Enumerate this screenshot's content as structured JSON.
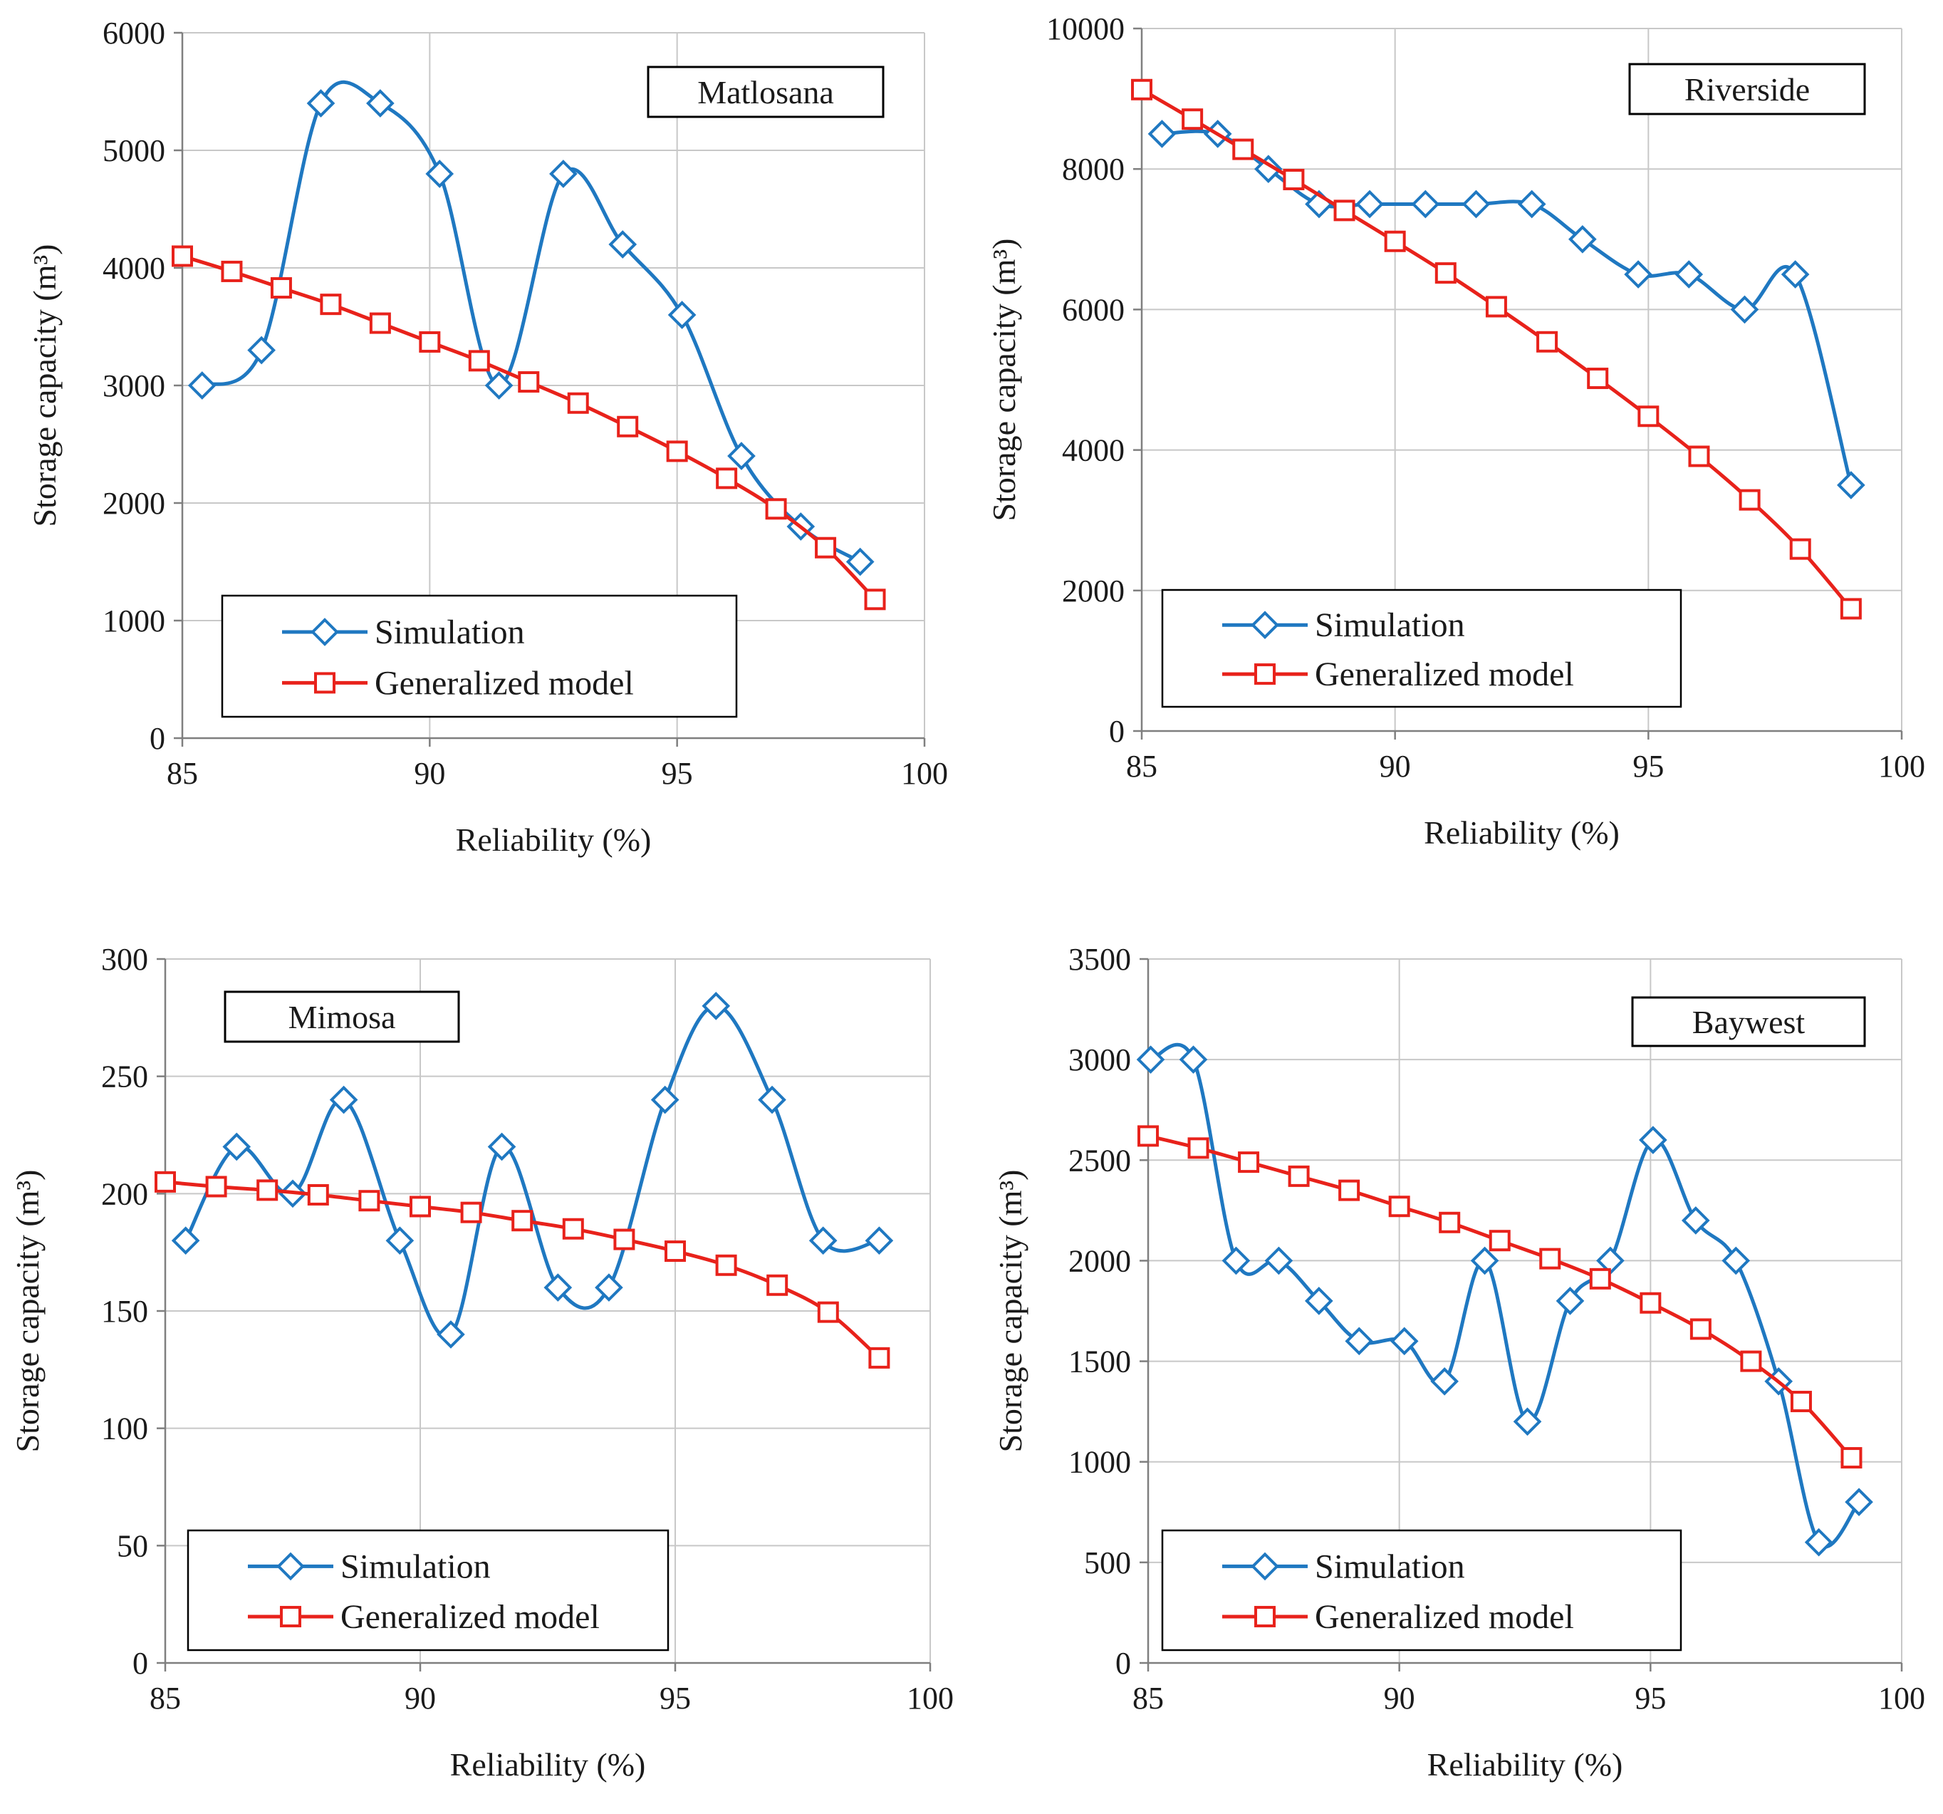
{
  "colors": {
    "simulation": "#1f78c1",
    "generalized_model": "#e8221b",
    "grid": "#c8c8c8",
    "axis": "#7f7f7f",
    "box_border": "#000000"
  },
  "chart_data": [
    {
      "id": "matlosana",
      "type": "line",
      "title": "Matlosana",
      "title_position": "top-right",
      "xlabel": "Reliability (%)",
      "ylabel": "Storage capacity (m³)",
      "xlim": [
        85,
        100
      ],
      "ylim": [
        0,
        6000
      ],
      "xticks": [
        85,
        90,
        95,
        100
      ],
      "yticks": [
        0,
        1000,
        2000,
        3000,
        4000,
        5000,
        6000
      ],
      "xtick_labels": [
        "85",
        "90",
        "95",
        "100"
      ],
      "ytick_labels": [
        "0",
        "1000",
        "2000",
        "3000",
        "4000",
        "5000",
        "6000"
      ],
      "grid": true,
      "legend_position": "bottom-left",
      "series": [
        {
          "name": "Simulation",
          "marker": "diamond",
          "x": [
            85.4,
            86.6,
            87.8,
            89.0,
            90.2,
            91.4,
            92.7,
            93.9,
            95.1,
            96.3,
            97.5,
            98.7
          ],
          "y": [
            3000,
            3300,
            5400,
            5400,
            4800,
            3000,
            4800,
            4200,
            3600,
            2400,
            1800,
            1500
          ]
        },
        {
          "name": "Generalized model",
          "marker": "square",
          "x": [
            85,
            86,
            87,
            88,
            89,
            90,
            91,
            92,
            93,
            94,
            95,
            96,
            97,
            98,
            99
          ],
          "y": [
            4100,
            3970,
            3830,
            3690,
            3530,
            3370,
            3210,
            3030,
            2850,
            2650,
            2440,
            2210,
            1950,
            1620,
            1180
          ]
        }
      ]
    },
    {
      "id": "riverside",
      "type": "line",
      "title": "Riverside",
      "title_position": "top-right",
      "xlabel": "Reliability (%)",
      "ylabel": "Storage capacity (m³)",
      "xlim": [
        85,
        100
      ],
      "ylim": [
        0,
        10000
      ],
      "xticks": [
        85,
        90,
        95,
        100
      ],
      "yticks": [
        0,
        2000,
        4000,
        6000,
        8000,
        10000
      ],
      "xtick_labels": [
        "85",
        "90",
        "95",
        "100"
      ],
      "ytick_labels": [
        "0",
        "2000",
        "4000",
        "6000",
        "8000",
        "10000"
      ],
      "grid": true,
      "legend_position": "bottom-left",
      "series": [
        {
          "name": "Simulation",
          "marker": "diamond",
          "x": [
            85.4,
            86.5,
            87.5,
            88.5,
            89.5,
            90.6,
            91.6,
            92.7,
            93.7,
            94.8,
            95.8,
            96.9,
            97.9,
            99.0
          ],
          "y": [
            8500,
            8500,
            8000,
            7500,
            7500,
            7500,
            7500,
            7500,
            7000,
            6500,
            6500,
            6000,
            6500,
            3500
          ]
        },
        {
          "name": "Generalized model",
          "marker": "square",
          "x": [
            85,
            86,
            87,
            88,
            89,
            90,
            91,
            92,
            93,
            94,
            95,
            96,
            97,
            98,
            99
          ],
          "y": [
            9130,
            8710,
            8280,
            7850,
            7410,
            6970,
            6520,
            6040,
            5540,
            5020,
            4480,
            3910,
            3290,
            2590,
            1740
          ]
        }
      ]
    },
    {
      "id": "mimosa",
      "type": "line",
      "title": "Mimosa",
      "title_position": "top-left",
      "xlabel": "Reliability (%)",
      "ylabel": "Storage capacity (m³)",
      "xlim": [
        85,
        100
      ],
      "ylim": [
        0,
        300
      ],
      "xticks": [
        85,
        90,
        95,
        100
      ],
      "yticks": [
        0,
        50,
        100,
        150,
        200,
        250,
        300
      ],
      "xtick_labels": [
        "85",
        "90",
        "95",
        "100"
      ],
      "ytick_labels": [
        "0",
        "50",
        "100",
        "150",
        "200",
        "250",
        "300"
      ],
      "grid": true,
      "legend_position": "bottom-left",
      "series": [
        {
          "name": "Simulation",
          "marker": "diamond",
          "x": [
            85.4,
            86.4,
            87.5,
            88.5,
            89.6,
            90.6,
            91.6,
            92.7,
            93.7,
            94.8,
            95.8,
            96.9,
            97.9,
            99.0
          ],
          "y": [
            180,
            220,
            200,
            240,
            180,
            140,
            220,
            160,
            160,
            240,
            280,
            240,
            180,
            180
          ]
        },
        {
          "name": "Generalized model",
          "marker": "square",
          "x": [
            85,
            86,
            87,
            88,
            89,
            90,
            91,
            92,
            93,
            94,
            95,
            96,
            97,
            98,
            99
          ],
          "y": [
            205,
            203,
            201.5,
            199.5,
            197,
            194.5,
            192,
            188.5,
            185,
            180.5,
            175.5,
            169.5,
            161,
            149.5,
            130
          ]
        }
      ]
    },
    {
      "id": "baywest",
      "type": "line",
      "title": "Baywest",
      "title_position": "top-right",
      "xlabel": "Reliability (%)",
      "ylabel": "Storage capacity (m³)",
      "xlim": [
        85,
        100
      ],
      "ylim": [
        0,
        3500
      ],
      "xticks": [
        85,
        90,
        95,
        100
      ],
      "yticks": [
        0,
        500,
        1000,
        1500,
        2000,
        2500,
        3000,
        3500
      ],
      "xtick_labels": [
        "85",
        "90",
        "95",
        "100"
      ],
      "ytick_labels": [
        "0",
        "500",
        "1000",
        "1500",
        "2000",
        "2500",
        "3000",
        "3500"
      ],
      "grid": true,
      "legend_position": "bottom-left",
      "series": [
        {
          "name": "Simulation",
          "marker": "diamond",
          "x": [
            85.05,
            85.9,
            86.75,
            87.6,
            88.4,
            89.2,
            90.1,
            90.9,
            91.7,
            92.55,
            93.4,
            94.2,
            95.05,
            95.9,
            96.7,
            97.55,
            98.35,
            99.15
          ],
          "y": [
            3000,
            3000,
            2000,
            2000,
            1800,
            1600,
            1600,
            1400,
            2000,
            1200,
            1800,
            2000,
            2600,
            2200,
            2000,
            1400,
            600,
            800
          ]
        },
        {
          "name": "Generalized model",
          "marker": "square",
          "x": [
            85,
            86,
            87,
            88,
            89,
            90,
            91,
            92,
            93,
            94,
            95,
            96,
            97,
            98,
            99
          ],
          "y": [
            2620,
            2560,
            2490,
            2420,
            2350,
            2270,
            2190,
            2100,
            2010,
            1910,
            1790,
            1660,
            1500,
            1300,
            1020
          ]
        }
      ]
    }
  ]
}
